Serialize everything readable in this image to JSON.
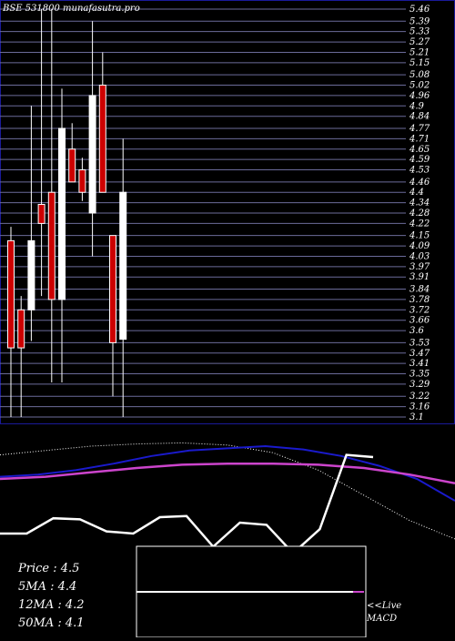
{
  "header": {
    "title": "BSE 531800 munafasutra.pro"
  },
  "chart_data": {
    "type": "candlestick",
    "title": "BSE 531800 munafasutra.pro",
    "ylim": [
      3.1,
      5.46
    ],
    "y_ticks": [
      5.46,
      5.39,
      5.33,
      5.27,
      5.21,
      5.15,
      5.08,
      5.02,
      4.96,
      4.9,
      4.84,
      4.77,
      4.71,
      4.65,
      4.59,
      4.53,
      4.46,
      4.4,
      4.34,
      4.28,
      4.22,
      4.15,
      4.09,
      4.03,
      3.97,
      3.91,
      3.84,
      3.78,
      3.72,
      3.66,
      3.6,
      3.53,
      3.47,
      3.41,
      3.35,
      3.29,
      3.22,
      3.16,
      3.1
    ],
    "candles": [
      {
        "open": 4.12,
        "close": 3.5,
        "high": 4.2,
        "low": 3.1,
        "color": "red"
      },
      {
        "open": 3.5,
        "close": 3.72,
        "high": 3.8,
        "low": 3.1,
        "color": "red"
      },
      {
        "open": 3.72,
        "close": 4.12,
        "high": 4.9,
        "low": 3.54,
        "color": "white"
      },
      {
        "open": 4.33,
        "close": 4.22,
        "high": 5.46,
        "low": 3.8,
        "color": "red"
      },
      {
        "open": 4.4,
        "close": 3.78,
        "high": 5.46,
        "low": 3.3,
        "color": "red"
      },
      {
        "open": 3.78,
        "close": 4.77,
        "high": 5.0,
        "low": 3.3,
        "color": "white"
      },
      {
        "open": 4.65,
        "close": 4.46,
        "high": 4.8,
        "low": 4.46,
        "color": "red"
      },
      {
        "open": 4.53,
        "close": 4.4,
        "high": 4.6,
        "low": 4.35,
        "color": "red"
      },
      {
        "open": 4.28,
        "close": 4.96,
        "high": 5.39,
        "low": 4.03,
        "color": "white"
      },
      {
        "open": 5.02,
        "close": 4.4,
        "high": 5.21,
        "low": 4.4,
        "color": "red"
      },
      {
        "open": 4.15,
        "close": 3.53,
        "high": 4.15,
        "low": 3.22,
        "color": "red"
      },
      {
        "open": 3.55,
        "close": 4.4,
        "high": 4.71,
        "low": 3.1,
        "color": "white"
      }
    ],
    "indicators": {
      "white_line": [
        0.2,
        0.2,
        0.34,
        0.33,
        0.22,
        0.2,
        0.35,
        0.36,
        0.08,
        0.3,
        0.28,
        0.02,
        0.24,
        0.92,
        0.9
      ],
      "blue_line": [
        0.72,
        0.74,
        0.78,
        0.84,
        0.91,
        0.96,
        0.98,
        1.0,
        0.97,
        0.91,
        0.82,
        0.7,
        0.5
      ],
      "pink_line": [
        0.7,
        0.72,
        0.76,
        0.8,
        0.83,
        0.84,
        0.84,
        0.83,
        0.8,
        0.74,
        0.66
      ],
      "dotted_line": [
        0.92,
        0.96,
        1.0,
        1.02,
        1.03,
        1.01,
        0.94,
        0.78,
        0.55,
        0.32,
        0.15
      ]
    }
  },
  "stats": {
    "price": "Price   : 4.5",
    "ma5": "5MA : 4.4",
    "ma12": "12MA : 4.2",
    "ma50": "50MA : 4.1"
  },
  "live_label": "<<Live",
  "macd_label": "MACD",
  "colors": {
    "up": "#ffffff",
    "down": "#cc0000",
    "grid": "#6b6b9a",
    "border": "#1a1a99",
    "blue": "#1a1acc",
    "pink": "#cc44cc"
  }
}
